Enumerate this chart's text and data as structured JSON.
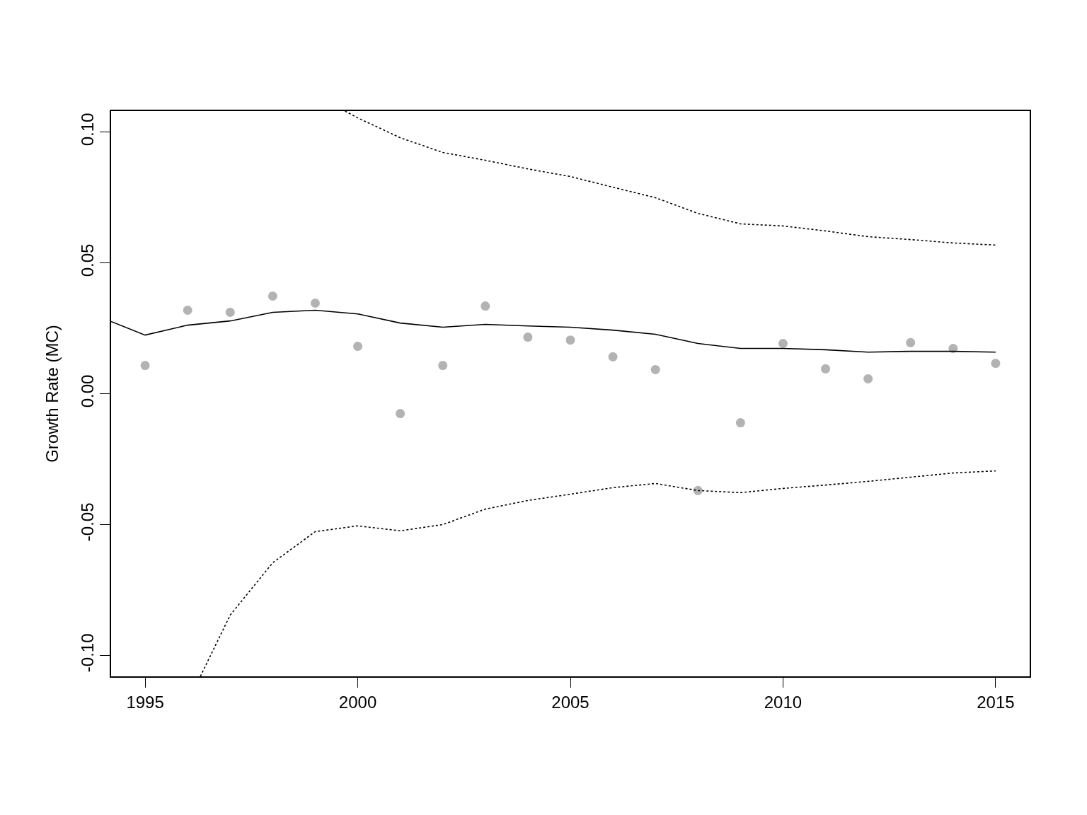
{
  "chart_data": {
    "type": "line",
    "ylabel": "Growth Rate (MC)",
    "xlim": [
      1994.2,
      2015.8
    ],
    "ylim": [
      -0.108,
      0.108
    ],
    "xticks": [
      1995,
      2000,
      2005,
      2010,
      2015
    ],
    "yticks": [
      {
        "value": -0.1,
        "label": "-0.10"
      },
      {
        "value": -0.05,
        "label": "-0.05"
      },
      {
        "value": 0,
        "label": "0.00"
      },
      {
        "value": 0.05,
        "label": "0.05"
      },
      {
        "value": 0.1,
        "label": "0.10"
      }
    ],
    "grid": false,
    "series": [
      {
        "type": "scatter",
        "marker": "circle",
        "color": "#b3b3b3",
        "x": [
          1995,
          1996,
          1997,
          1998,
          1999,
          2000,
          2001,
          2002,
          2003,
          2004,
          2005,
          2006,
          2007,
          2008,
          2009,
          2010,
          2011,
          2012,
          2013,
          2014,
          2015
        ],
        "values": [
          0.0108,
          0.0319,
          0.0311,
          0.0373,
          0.0346,
          0.0181,
          -0.0076,
          0.0108,
          0.0335,
          0.0216,
          0.0205,
          0.0141,
          0.0092,
          -0.037,
          -0.0111,
          0.0192,
          0.0095,
          0.0057,
          0.0195,
          0.0173,
          0.0116
        ]
      },
      {
        "line_style": "solid",
        "color": "#000000",
        "x": [
          1994.2,
          1995,
          1996,
          1997,
          1998,
          1999,
          2000,
          2001,
          2002,
          2003,
          2004,
          2005,
          2006,
          2007,
          2008,
          2009,
          2010,
          2011,
          2012,
          2013,
          2014,
          2015
        ],
        "values": [
          0.0276,
          0.0224,
          0.0262,
          0.0278,
          0.0311,
          0.0319,
          0.0305,
          0.027,
          0.0254,
          0.0265,
          0.0259,
          0.0254,
          0.0243,
          0.0227,
          0.0192,
          0.0173,
          0.0173,
          0.0168,
          0.0159,
          0.0162,
          0.0162,
          0.0159
        ]
      },
      {
        "line_style": "dotted",
        "color": "#000000",
        "x": [
          1999.7,
          2000,
          2001,
          2002,
          2003,
          2004,
          2005,
          2006,
          2007,
          2008,
          2009,
          2010,
          2011,
          2012,
          2013,
          2014,
          2015
        ],
        "values": [
          0.108,
          0.1054,
          0.0978,
          0.0922,
          0.0892,
          0.0859,
          0.083,
          0.0789,
          0.0749,
          0.0689,
          0.0649,
          0.0641,
          0.0622,
          0.06,
          0.0589,
          0.0576,
          0.0568
        ]
      },
      {
        "line_style": "dotted",
        "color": "#000000",
        "x": [
          1996.3,
          1997,
          1998,
          1999,
          2000,
          2001,
          2002,
          2003,
          2004,
          2005,
          2006,
          2007,
          2008,
          2009,
          2010,
          2011,
          2012,
          2013,
          2014,
          2015
        ],
        "values": [
          -0.108,
          -0.0846,
          -0.0646,
          -0.0527,
          -0.0505,
          -0.0524,
          -0.05,
          -0.0441,
          -0.0408,
          -0.0384,
          -0.0359,
          -0.0343,
          -0.037,
          -0.0378,
          -0.0362,
          -0.0349,
          -0.0335,
          -0.0319,
          -0.0303,
          -0.0295
        ]
      }
    ]
  }
}
